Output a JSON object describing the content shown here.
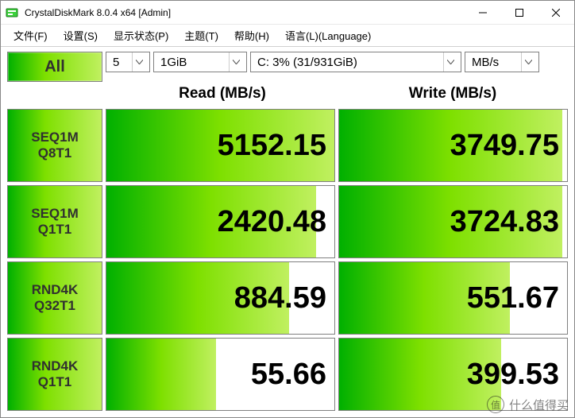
{
  "window": {
    "title": "CrystalDiskMark 8.0.4 x64 [Admin]"
  },
  "menu": {
    "file": "文件(F)",
    "settings": "设置(S)",
    "display": "显示状态(P)",
    "theme": "主题(T)",
    "help": "帮助(H)",
    "language": "语言(L)(Language)"
  },
  "controls": {
    "all_label": "All",
    "runs_value": "5",
    "size_value": "1GiB",
    "drive_value": "C: 3% (31/931GiB)",
    "unit_value": "MB/s"
  },
  "headers": {
    "read": "Read (MB/s)",
    "write": "Write (MB/s)"
  },
  "tests": [
    {
      "label1": "SEQ1M",
      "label2": "Q8T1",
      "read": "5152.15",
      "read_fill": 100,
      "write": "3749.75",
      "write_fill": 98
    },
    {
      "label1": "SEQ1M",
      "label2": "Q1T1",
      "read": "2420.48",
      "read_fill": 92,
      "write": "3724.83",
      "write_fill": 98
    },
    {
      "label1": "RND4K",
      "label2": "Q32T1",
      "read": "884.59",
      "read_fill": 80,
      "write": "551.67",
      "write_fill": 75
    },
    {
      "label1": "RND4K",
      "label2": "Q1T1",
      "read": "55.66",
      "read_fill": 48,
      "write": "399.53",
      "write_fill": 71
    }
  ],
  "colors": {
    "grad_start": "#00b000",
    "grad_mid": "#7ee000",
    "grad_end": "#c0f060",
    "border": "#808080",
    "text": "#000000",
    "btn_text": "#303030",
    "bg": "#ffffff"
  },
  "watermark": {
    "char": "值",
    "text": "什么值得买"
  }
}
